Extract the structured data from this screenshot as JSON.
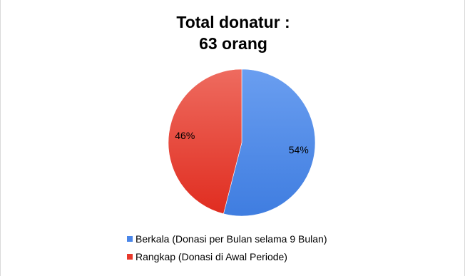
{
  "chart_data": {
    "type": "pie",
    "title_lines": [
      "Total donatur :",
      "63 orang"
    ],
    "slices": [
      {
        "label": "Berkala (Donasi per Bulan selama 9 Bulan)",
        "value": 54,
        "value_label": "54%",
        "color": "#4a86e8"
      },
      {
        "label": "Rangkap (Donasi di Awal Periode)",
        "value": 46,
        "value_label": "46%",
        "color": "#e8392c"
      }
    ],
    "legend_position": "bottom"
  }
}
